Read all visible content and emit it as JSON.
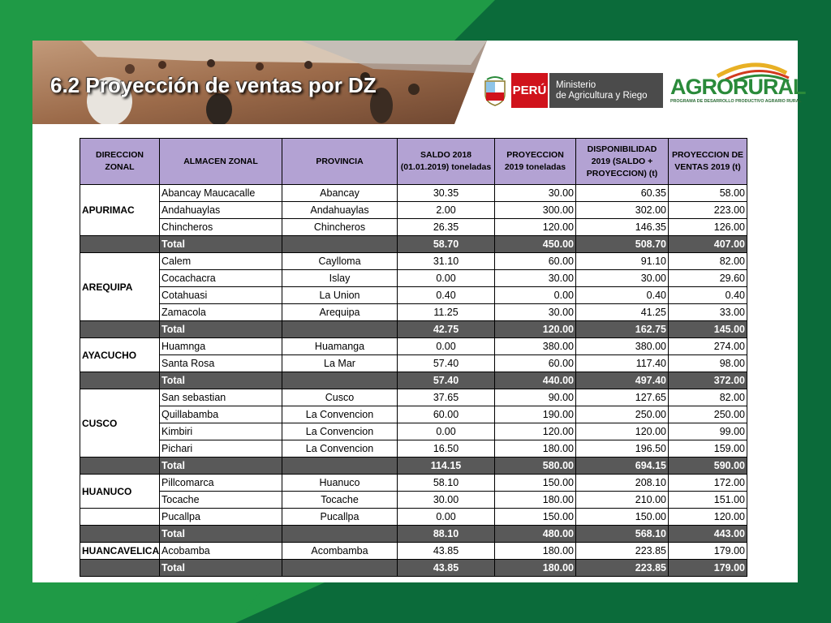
{
  "slide": {
    "title": "6.2 Proyección de ventas por DZ",
    "logos": {
      "peru": "PERÚ",
      "ministerio_line1": "Ministerio",
      "ministerio_line2": "de Agricultura y Riego",
      "agrorural": "AGRORURAL",
      "agrorural_sub": "PROGRAMA DE DESARROLLO PRODUCTIVO AGRARIO RURAL"
    },
    "colors": {
      "background_green": "#1f9a46",
      "background_dark_green": "#0b6b3a",
      "header_purple": "#b3a2d3",
      "total_row_gray": "#595959"
    }
  },
  "table": {
    "headers": {
      "direccion": "DIRECCION ZONAL",
      "almacen": "ALMACEN ZONAL",
      "provincia": "PROVINCIA",
      "saldo": "SALDO 2018 (01.01.2019) toneladas",
      "proyeccion": "PROYECCION 2019 toneladas",
      "disponibilidad": "DISPONIBILIDAD 2019 (SALDO + PROYECCION) (t)",
      "ventas": "PROYECCION DE VENTAS 2019 (t)"
    },
    "apurimac": {
      "zona": "APURIMAC",
      "rows": [
        [
          "Abancay Maucacalle",
          "Abancay",
          "30.35",
          "30.00",
          "60.35",
          "58.00"
        ],
        [
          "Andahuaylas",
          "Andahuaylas",
          "2.00",
          "300.00",
          "302.00",
          "223.00"
        ],
        [
          "Chincheros",
          "Chincheros",
          "26.35",
          "120.00",
          "146.35",
          "126.00"
        ]
      ],
      "total": [
        "Total",
        "58.70",
        "450.00",
        "508.70",
        "407.00"
      ]
    },
    "arequipa": {
      "zona": "AREQUIPA",
      "rows": [
        [
          "Calem",
          "Caylloma",
          "31.10",
          "60.00",
          "91.10",
          "82.00"
        ],
        [
          "Cocachacra",
          "Islay",
          "0.00",
          "30.00",
          "30.00",
          "29.60"
        ],
        [
          "Cotahuasi",
          "La Union",
          "0.40",
          "0.00",
          "0.40",
          "0.40"
        ],
        [
          "Zamacola",
          "Arequipa",
          "11.25",
          "30.00",
          "41.25",
          "33.00"
        ]
      ],
      "total": [
        "Total",
        "42.75",
        "120.00",
        "162.75",
        "145.00"
      ]
    },
    "ayacucho": {
      "zona": "AYACUCHO",
      "rows": [
        [
          "Huamnga",
          "Huamanga",
          "0.00",
          "380.00",
          "380.00",
          "274.00"
        ],
        [
          "Santa Rosa",
          "La Mar",
          "57.40",
          "60.00",
          "117.40",
          "98.00"
        ]
      ],
      "total": [
        "Total",
        "57.40",
        "440.00",
        "497.40",
        "372.00"
      ]
    },
    "cusco": {
      "zona": "CUSCO",
      "rows": [
        [
          "San sebastian",
          "Cusco",
          "37.65",
          "90.00",
          "127.65",
          "82.00"
        ],
        [
          "Quillabamba",
          "La Convencion",
          "60.00",
          "190.00",
          "250.00",
          "250.00"
        ],
        [
          "Kimbiri",
          "La Convencion",
          "0.00",
          "120.00",
          "120.00",
          "99.00"
        ],
        [
          "Pichari",
          "La Convencion",
          "16.50",
          "180.00",
          "196.50",
          "159.00"
        ]
      ],
      "total": [
        "Total",
        "114.15",
        "580.00",
        "694.15",
        "590.00"
      ]
    },
    "huanuco": {
      "zona": "HUANUCO",
      "rows": [
        [
          "Pillcomarca",
          "Huanuco",
          "58.10",
          "150.00",
          "208.10",
          "172.00"
        ],
        [
          "Tocache",
          "Tocache",
          "30.00",
          "180.00",
          "210.00",
          "151.00"
        ],
        [
          "Pucallpa",
          "Pucallpa",
          "0.00",
          "150.00",
          "150.00",
          "120.00"
        ]
      ],
      "total": [
        "Total",
        "88.10",
        "480.00",
        "568.10",
        "443.00"
      ]
    },
    "huancavelica": {
      "zona": "HUANCAVELICA",
      "rows": [
        [
          "Acobamba",
          "Acombamba",
          "43.85",
          "180.00",
          "223.85",
          "179.00"
        ]
      ],
      "total": [
        "Total",
        "43.85",
        "180.00",
        "223.85",
        "179.00"
      ]
    }
  }
}
